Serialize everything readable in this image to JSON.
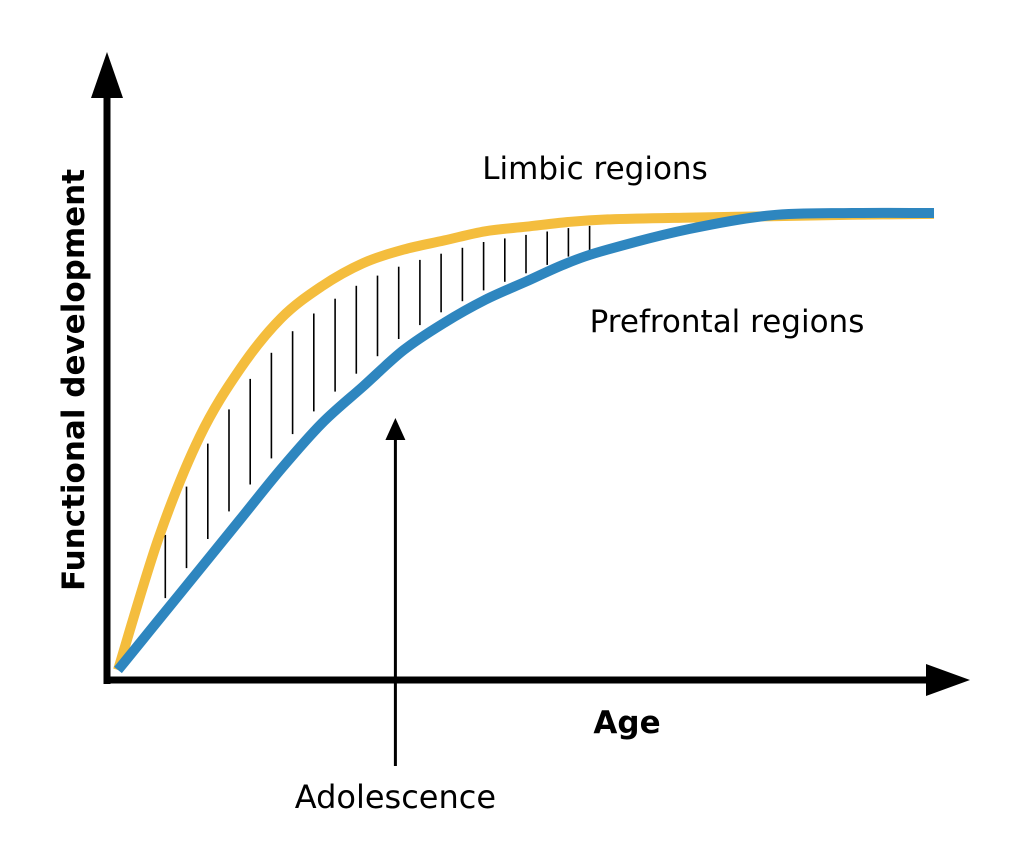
{
  "chart_data": {
    "type": "line",
    "title": "",
    "xlabel": "Age",
    "ylabel": "Functional development",
    "xlim": [
      0,
      100
    ],
    "ylim": [
      0,
      100
    ],
    "grid": false,
    "legend": "none",
    "series": [
      {
        "name": "Limbic regions",
        "color": "#f4bd3d",
        "x": [
          0,
          5,
          10,
          15,
          20,
          25,
          30,
          35,
          40,
          45,
          50,
          55,
          60,
          70,
          80,
          90,
          100
        ],
        "y": [
          0,
          29,
          51,
          66,
          77,
          84,
          89,
          92,
          94,
          96,
          97,
          98,
          98.6,
          99,
          99.3,
          99.6,
          99.8
        ]
      },
      {
        "name": "Prefrontal regions",
        "color": "#2e86bf",
        "x": [
          0,
          5,
          10,
          15,
          20,
          25,
          30,
          35,
          40,
          45,
          50,
          55,
          60,
          70,
          80,
          90,
          100
        ],
        "y": [
          0,
          11,
          22,
          33,
          44,
          54,
          62,
          70,
          76,
          81,
          85,
          89,
          92,
          96.5,
          99.5,
          100,
          100
        ]
      }
    ],
    "shaded_region": {
      "between": [
        "Limbic regions",
        "Prefrontal regions"
      ],
      "x_range": [
        0,
        60
      ],
      "style": "vertical-hatch"
    },
    "annotations": [
      {
        "text": "Adolescence",
        "x": 34
      }
    ],
    "colors": {
      "axis": "#000000",
      "hatch": "#000000"
    }
  }
}
